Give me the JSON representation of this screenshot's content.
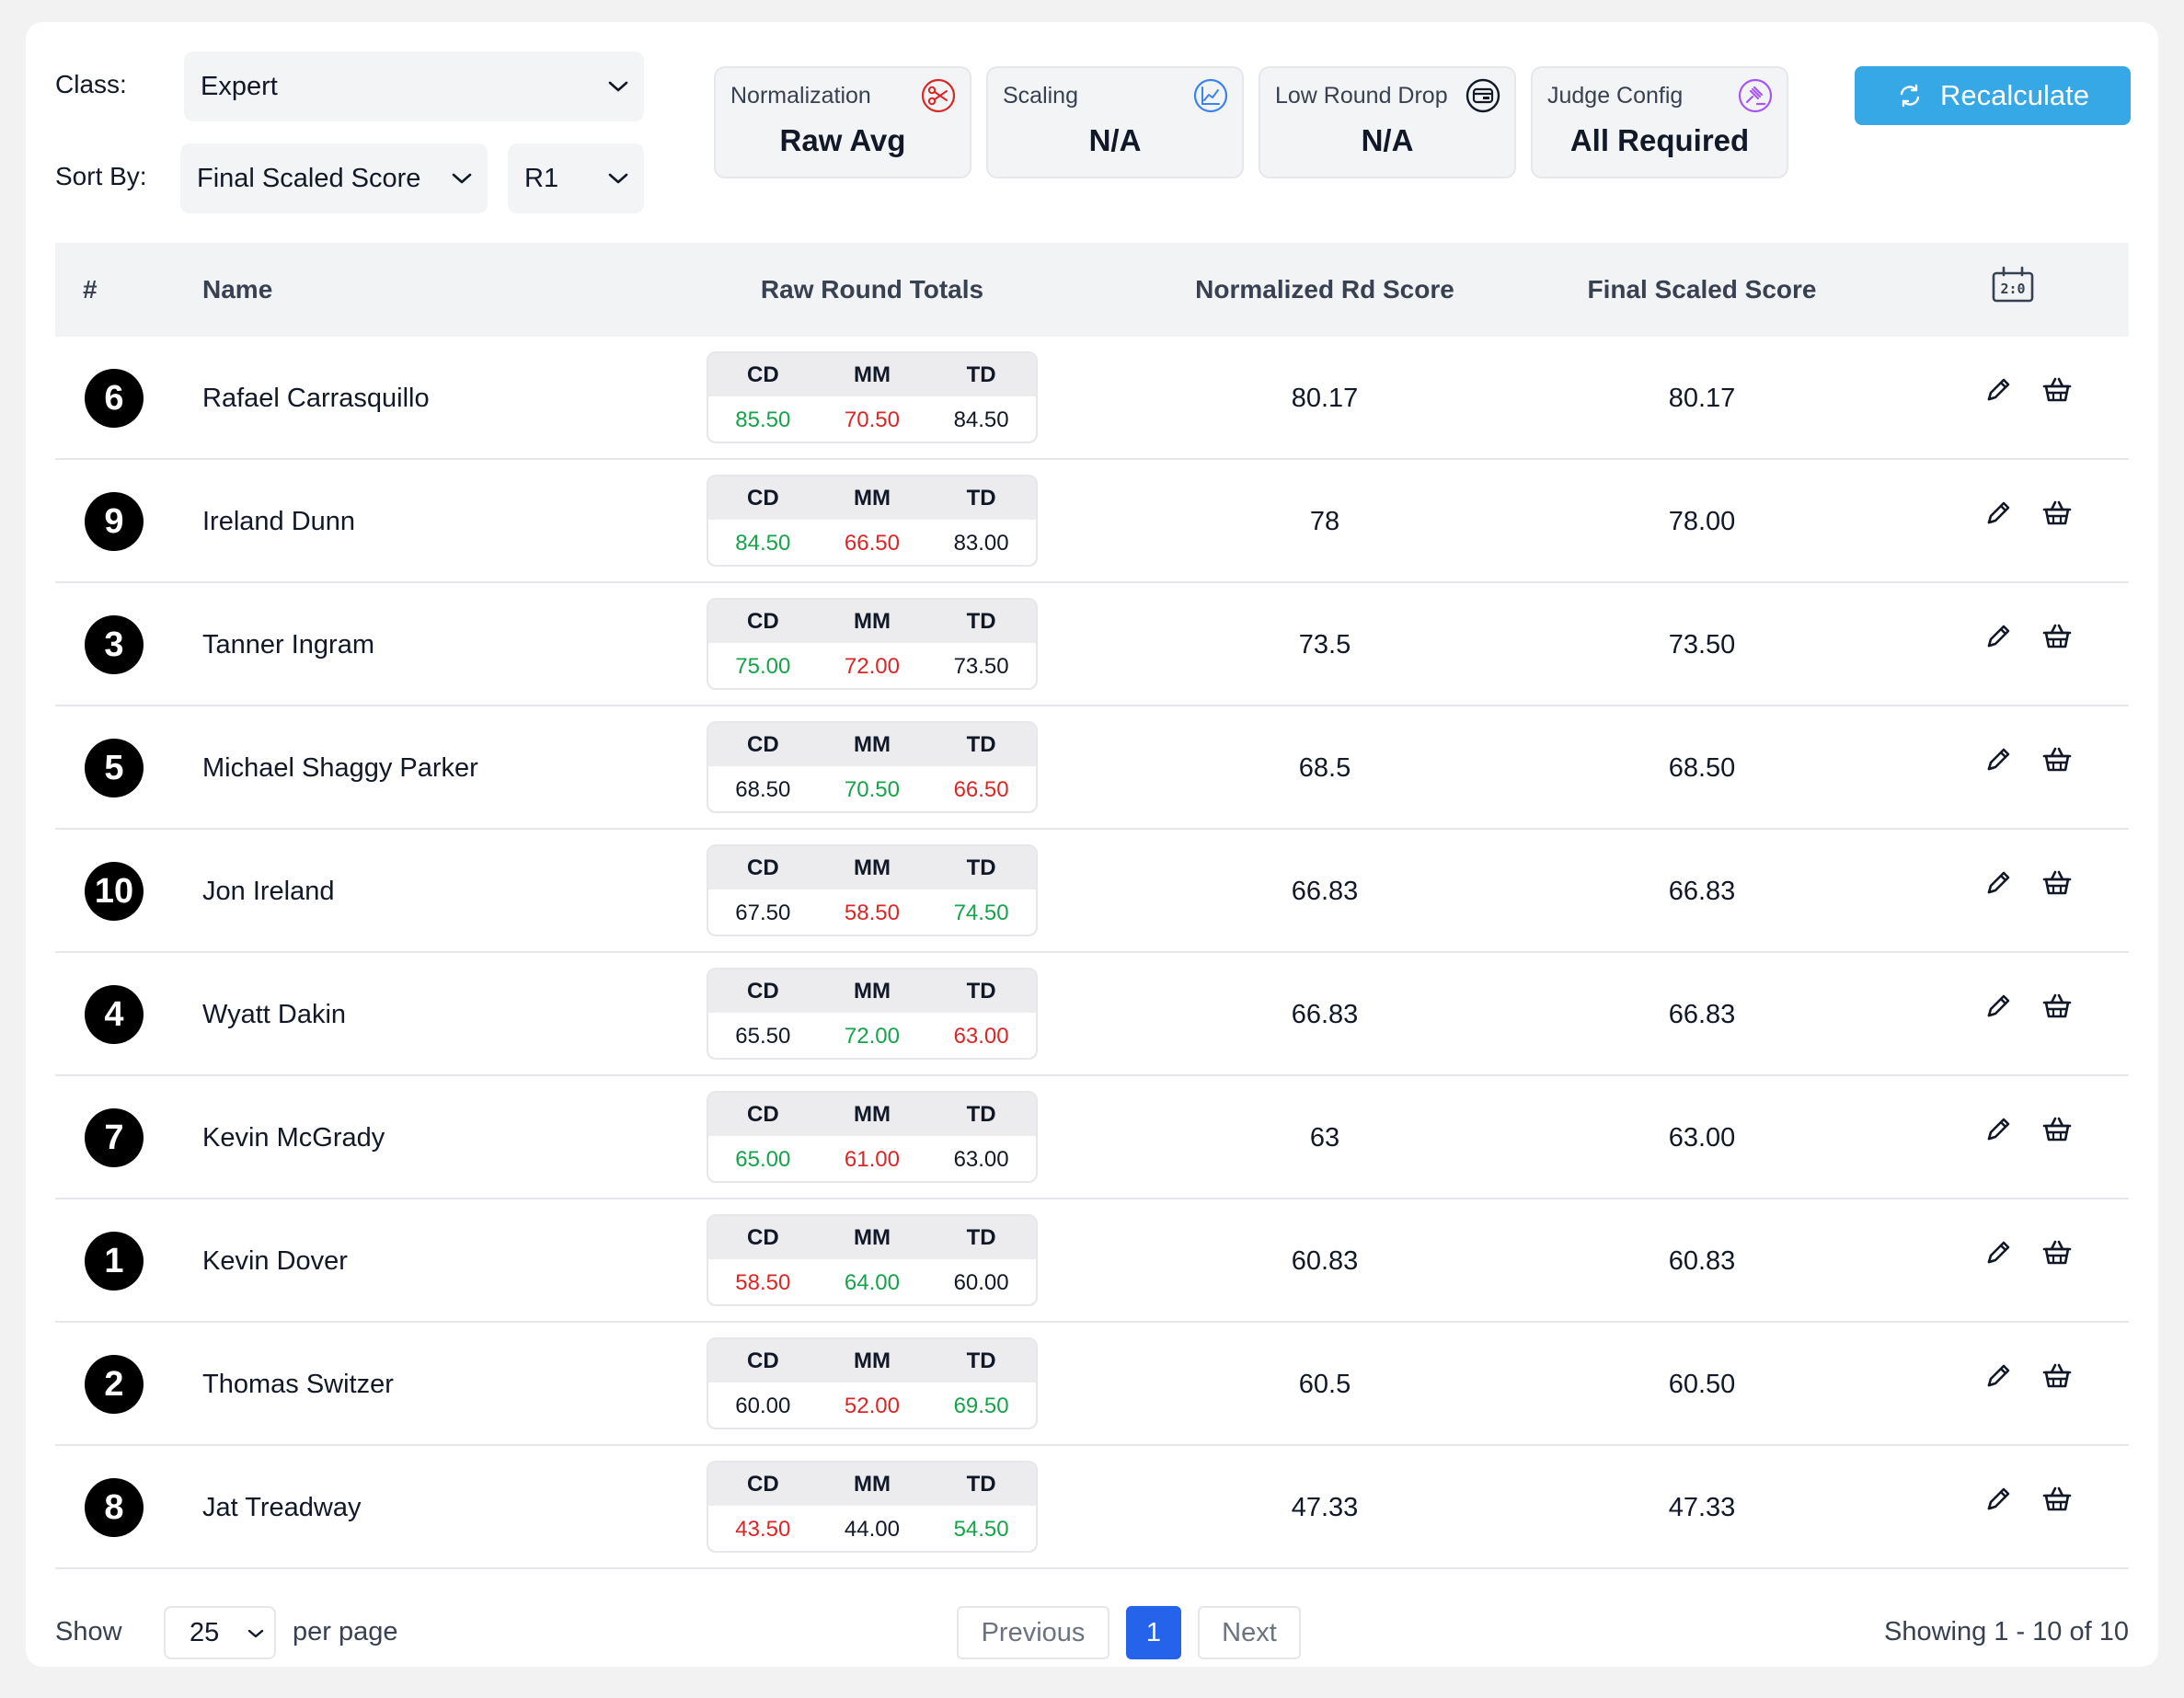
{
  "filters": {
    "class_label": "Class:",
    "class_value": "Expert",
    "sort_label": "Sort By:",
    "sort_value": "Final Scaled Score",
    "round_value": "R1"
  },
  "stats": [
    {
      "label": "Normalization",
      "value": "Raw Avg",
      "icon": "scissors-icon",
      "color": "#dc2626"
    },
    {
      "label": "Scaling",
      "value": "N/A",
      "icon": "chart-line-icon",
      "color": "#3b82f6"
    },
    {
      "label": "Low Round Drop",
      "value": "N/A",
      "icon": "card-icon",
      "color": "#111827"
    },
    {
      "label": "Judge Config",
      "value": "All Required",
      "icon": "gavel-icon",
      "color": "#a855f7"
    }
  ],
  "recalculate_label": "Recalculate",
  "accent": "#37a8e6",
  "table": {
    "headers": {
      "rank": "#",
      "name": "Name",
      "raw": "Raw Round Totals",
      "normalized": "Normalized Rd Score",
      "final": "Final Scaled Score"
    },
    "round_codes": [
      "CD",
      "MM",
      "TD"
    ],
    "rows": [
      {
        "rank": "6",
        "name": "Rafael Carrasquillo",
        "rounds": [
          {
            "v": "85.50",
            "c": "green"
          },
          {
            "v": "70.50",
            "c": "red"
          },
          {
            "v": "84.50",
            "c": "black"
          }
        ],
        "normalized": "80.17",
        "final": "80.17"
      },
      {
        "rank": "9",
        "name": "Ireland Dunn",
        "rounds": [
          {
            "v": "84.50",
            "c": "green"
          },
          {
            "v": "66.50",
            "c": "red"
          },
          {
            "v": "83.00",
            "c": "black"
          }
        ],
        "normalized": "78",
        "final": "78.00"
      },
      {
        "rank": "3",
        "name": "Tanner Ingram",
        "rounds": [
          {
            "v": "75.00",
            "c": "green"
          },
          {
            "v": "72.00",
            "c": "red"
          },
          {
            "v": "73.50",
            "c": "black"
          }
        ],
        "normalized": "73.5",
        "final": "73.50"
      },
      {
        "rank": "5",
        "name": "Michael Shaggy Parker",
        "rounds": [
          {
            "v": "68.50",
            "c": "black"
          },
          {
            "v": "70.50",
            "c": "green"
          },
          {
            "v": "66.50",
            "c": "red"
          }
        ],
        "normalized": "68.5",
        "final": "68.50"
      },
      {
        "rank": "10",
        "name": "Jon Ireland",
        "rounds": [
          {
            "v": "67.50",
            "c": "black"
          },
          {
            "v": "58.50",
            "c": "red"
          },
          {
            "v": "74.50",
            "c": "green"
          }
        ],
        "normalized": "66.83",
        "final": "66.83"
      },
      {
        "rank": "4",
        "name": "Wyatt Dakin",
        "rounds": [
          {
            "v": "65.50",
            "c": "black"
          },
          {
            "v": "72.00",
            "c": "green"
          },
          {
            "v": "63.00",
            "c": "red"
          }
        ],
        "normalized": "66.83",
        "final": "66.83"
      },
      {
        "rank": "7",
        "name": "Kevin McGrady",
        "rounds": [
          {
            "v": "65.00",
            "c": "green"
          },
          {
            "v": "61.00",
            "c": "red"
          },
          {
            "v": "63.00",
            "c": "black"
          }
        ],
        "normalized": "63",
        "final": "63.00"
      },
      {
        "rank": "1",
        "name": "Kevin Dover",
        "rounds": [
          {
            "v": "58.50",
            "c": "red"
          },
          {
            "v": "64.00",
            "c": "green"
          },
          {
            "v": "60.00",
            "c": "black"
          }
        ],
        "normalized": "60.83",
        "final": "60.83"
      },
      {
        "rank": "2",
        "name": "Thomas Switzer",
        "rounds": [
          {
            "v": "60.00",
            "c": "black"
          },
          {
            "v": "52.00",
            "c": "red"
          },
          {
            "v": "69.50",
            "c": "green"
          }
        ],
        "normalized": "60.5",
        "final": "60.50"
      },
      {
        "rank": "8",
        "name": "Jat Treadway",
        "rounds": [
          {
            "v": "43.50",
            "c": "red"
          },
          {
            "v": "44.00",
            "c": "black"
          },
          {
            "v": "54.50",
            "c": "green"
          }
        ],
        "normalized": "47.33",
        "final": "47.33"
      }
    ]
  },
  "pagination": {
    "show_label": "Show",
    "per_page_value": "25",
    "per_page_label": "per page",
    "previous": "Previous",
    "current_page": "1",
    "next": "Next",
    "showing": "Showing 1 - 10 of 10"
  }
}
